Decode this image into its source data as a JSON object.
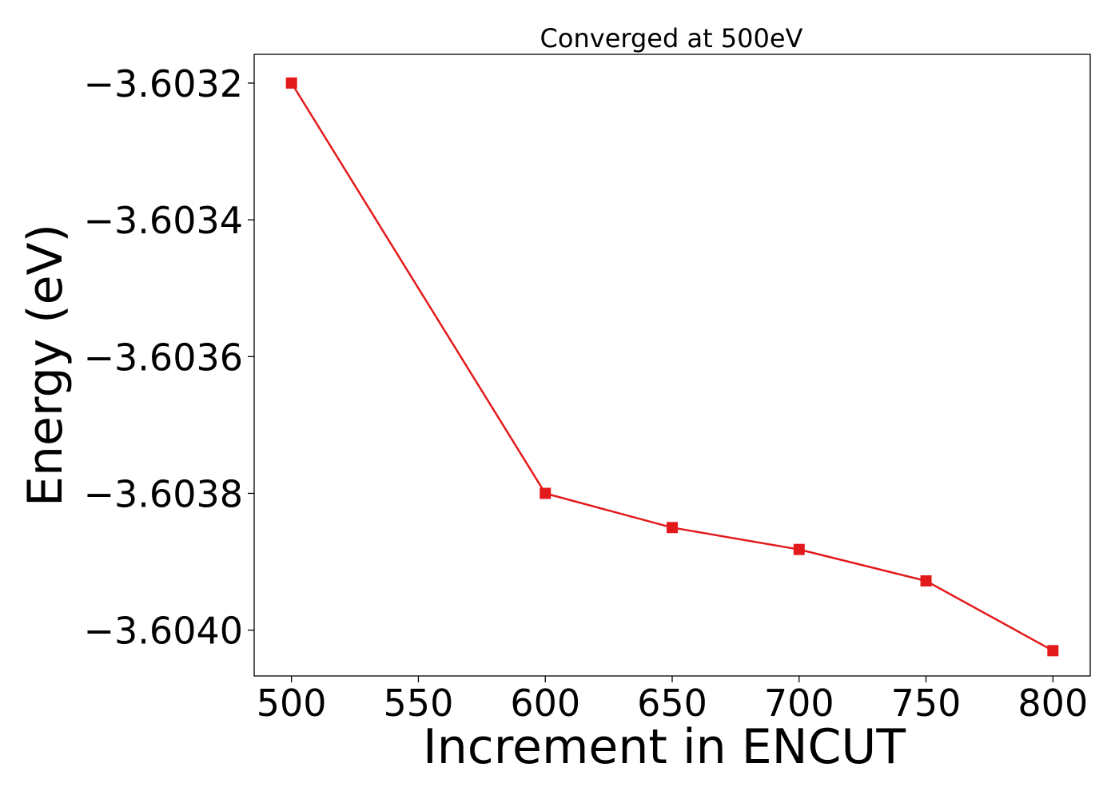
{
  "chart_data": {
    "type": "line",
    "title": "Converged at 500eV",
    "xlabel": "Increment in ENCUT",
    "ylabel": "Energy (eV)",
    "x": [
      500,
      600,
      650,
      700,
      750,
      800
    ],
    "series": [
      {
        "color": "#e31a1c",
        "marker": "square",
        "y": [
          -3.6032,
          -3.6038,
          -3.60385,
          -3.603882,
          -3.603928,
          -3.60403
        ]
      }
    ],
    "xticks": [
      500,
      550,
      600,
      650,
      700,
      750,
      800
    ],
    "xtick_labels": [
      "500",
      "550",
      "600",
      "650",
      "700",
      "750",
      "800"
    ],
    "yticks": [
      -3.6032,
      -3.6034,
      -3.6036,
      -3.6038,
      -3.604
    ],
    "ytick_labels": [
      "−3.6032",
      "−3.6034",
      "−3.6036",
      "−3.6038",
      "−3.6040"
    ],
    "xlim": [
      485.3,
      814.7
    ],
    "ylim": [
      -3.604067,
      -3.603158
    ],
    "grid": false,
    "legend": false
  }
}
